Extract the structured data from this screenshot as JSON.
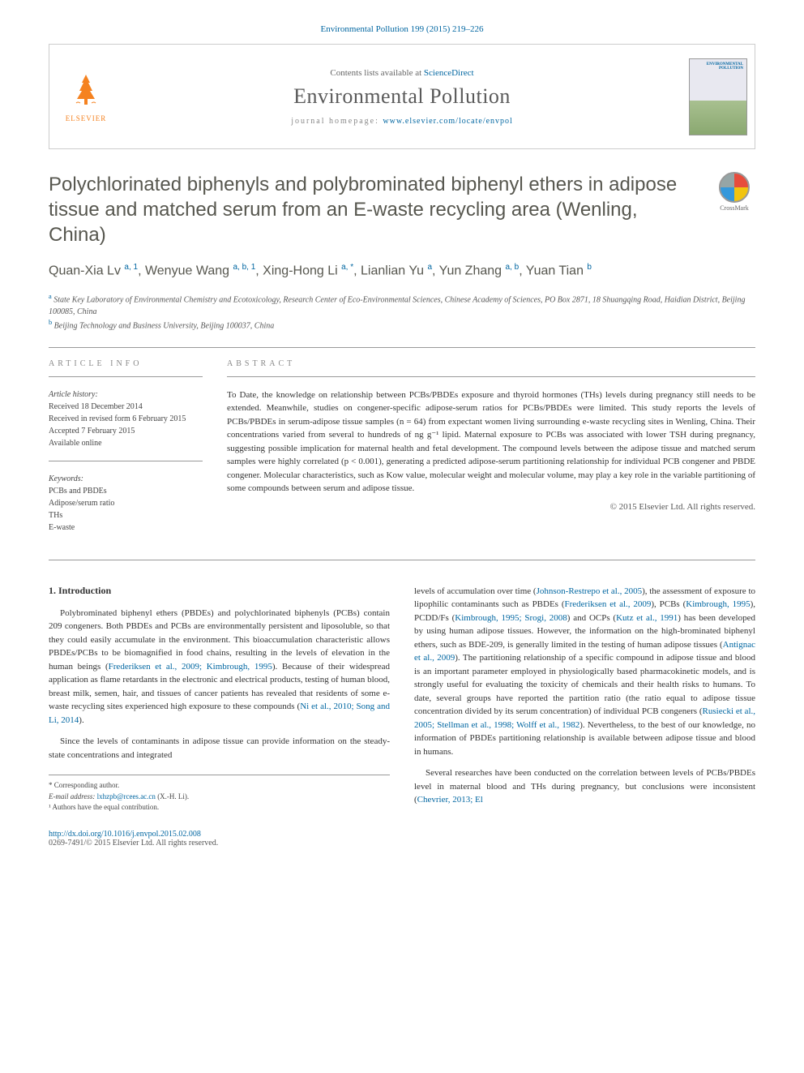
{
  "citation": "Environmental Pollution 199 (2015) 219–226",
  "header": {
    "publisher": "ELSEVIER",
    "contents_prefix": "Contents lists available at ",
    "contents_link": "ScienceDirect",
    "journal": "Environmental Pollution",
    "homepage_prefix": "journal homepage: ",
    "homepage_url": "www.elsevier.com/locate/envpol",
    "cover_label": "ENVIRONMENTAL POLLUTION"
  },
  "crossmark": "CrossMark",
  "title": "Polychlorinated biphenyls and polybrominated biphenyl ethers in adipose tissue and matched serum from an E-waste recycling area (Wenling, China)",
  "authors_html": "Quan-Xia Lv <sup>a, 1</sup>, Wenyue Wang <sup>a, b, 1</sup>, Xing-Hong Li <sup>a, *</sup>, Lianlian Yu <sup>a</sup>, Yun Zhang <sup>a, b</sup>, Yuan Tian <sup>b</sup>",
  "affiliations": {
    "a": "State Key Laboratory of Environmental Chemistry and Ecotoxicology, Research Center of Eco-Environmental Sciences, Chinese Academy of Sciences, PO Box 2871, 18 Shuangqing Road, Haidian District, Beijing 100085, China",
    "b": "Beijing Technology and Business University, Beijing 100037, China"
  },
  "info": {
    "heading": "ARTICLE INFO",
    "history_label": "Article history:",
    "received": "Received 18 December 2014",
    "revised": "Received in revised form 6 February 2015",
    "accepted": "Accepted 7 February 2015",
    "available": "Available online",
    "keywords_label": "Keywords:",
    "keywords": [
      "PCBs and PBDEs",
      "Adipose/serum ratio",
      "THs",
      "E-waste"
    ]
  },
  "abstract": {
    "heading": "ABSTRACT",
    "text": "To Date, the knowledge on relationship between PCBs/PBDEs exposure and thyroid hormones (THs) levels during pregnancy still needs to be extended. Meanwhile, studies on congener-specific adipose-serum ratios for PCBs/PBDEs were limited. This study reports the levels of PCBs/PBDEs in serum-adipose tissue samples (n = 64) from expectant women living surrounding e-waste recycling sites in Wenling, China. Their concentrations varied from several to hundreds of ng g⁻¹ lipid. Maternal exposure to PCBs was associated with lower TSH during pregnancy, suggesting possible implication for maternal health and fetal development. The compound levels between the adipose tissue and matched serum samples were highly correlated (p < 0.001), generating a predicted adipose-serum partitioning relationship for individual PCB congener and PBDE congener. Molecular characteristics, such as Kow value, molecular weight and molecular volume, may play a key role in the variable partitioning of some compounds between serum and adipose tissue.",
    "copyright": "© 2015 Elsevier Ltd. All rights reserved."
  },
  "body": {
    "section_num": "1.",
    "section_title": "Introduction",
    "p1_a": "Polybrominated biphenyl ethers (PBDEs) and polychlorinated biphenyls (PCBs) contain 209 congeners. Both PBDEs and PCBs are environmentally persistent and liposoluble, so that they could easily accumulate in the environment. This bioaccumulation characteristic allows PBDEs/PCBs to be biomagnified in food chains, resulting in the levels of elevation in the human beings (",
    "p1_ref1": "Frederiksen et al., 2009; Kimbrough, 1995",
    "p1_b": "). Because of their widespread application as flame retardants in the electronic and electrical products, testing of human blood, breast milk, semen, hair, and tissues of cancer patients has revealed that residents of some e-waste recycling sites experienced high exposure to these compounds (",
    "p1_ref2": "Ni et al., 2010; Song and Li, 2014",
    "p1_c": ").",
    "p2": "Since the levels of contaminants in adipose tissue can provide information on the steady-state concentrations and integrated",
    "p3_a": "levels of accumulation over time (",
    "p3_r1": "Johnson-Restrepo et al., 2005",
    "p3_b": "), the assessment of exposure to lipophilic contaminants such as PBDEs (",
    "p3_r2": "Frederiksen et al., 2009",
    "p3_c": "), PCBs (",
    "p3_r3": "Kimbrough, 1995",
    "p3_d": "), PCDD/Fs (",
    "p3_r4": "Kimbrough, 1995; Srogi, 2008",
    "p3_e": ") and OCPs (",
    "p3_r5": "Kutz et al., 1991",
    "p3_f": ") has been developed by using human adipose tissues. However, the information on the high-brominated biphenyl ethers, such as BDE-209, is generally limited in the testing of human adipose tissues (",
    "p3_r6": "Antignac et al., 2009",
    "p3_g": "). The partitioning relationship of a specific compound in adipose tissue and blood is an important parameter employed in physiologically based pharmacokinetic models, and is strongly useful for evaluating the toxicity of chemicals and their health risks to humans. To date, several groups have reported the partition ratio (the ratio equal to adipose tissue concentration divided by its serum concentration) of individual PCB congeners (",
    "p3_r7": "Rusiecki et al., 2005; Stellman et al., 1998; Wolff et al., 1982",
    "p3_h": "). Nevertheless, to the best of our knowledge, no information of PBDEs partitioning relationship is available between adipose tissue and blood in humans.",
    "p4_a": "Several researches have been conducted on the correlation between levels of PCBs/PBDEs level in maternal blood and THs during pregnancy, but conclusions were inconsistent (",
    "p4_r1": "Chevrier, 2013; El"
  },
  "footnotes": {
    "corr": "* Corresponding author.",
    "email_label": "E-mail address:",
    "email": "lxhzpb@rcees.ac.cn",
    "email_who": "(X.-H. Li).",
    "equal": "¹ Authors have the equal contribution."
  },
  "footer": {
    "doi": "http://dx.doi.org/10.1016/j.envpol.2015.02.008",
    "issn": "0269-7491/© 2015 Elsevier Ltd. All rights reserved."
  },
  "colors": {
    "link": "#0066a1",
    "heading": "#57574f",
    "elsevier": "#f58220"
  }
}
